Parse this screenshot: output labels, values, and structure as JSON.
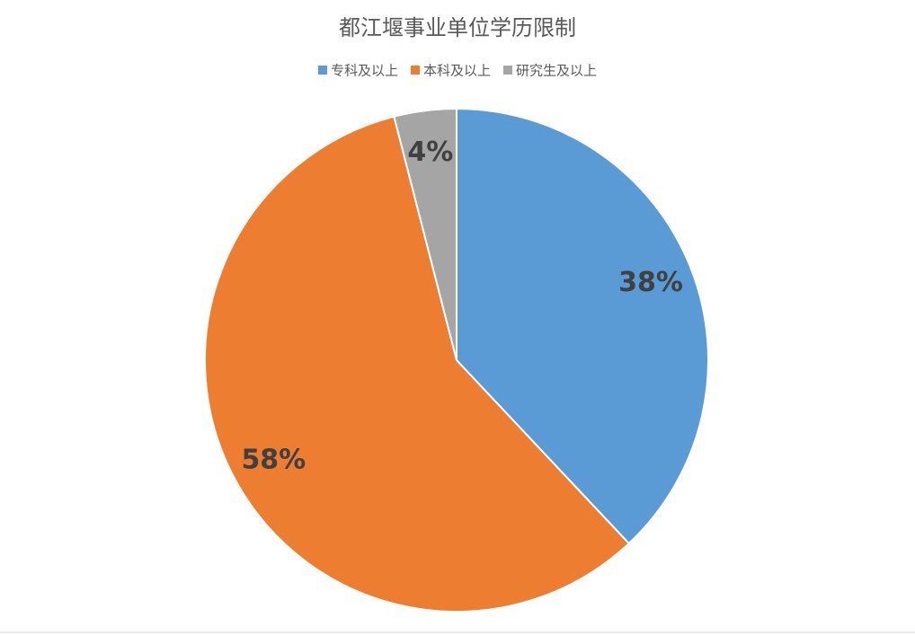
{
  "chart_data": {
    "type": "pie",
    "title": "都江堰事业单位学历限制",
    "categories": [
      "专科及以上",
      "本科及以上",
      "研究生及以上"
    ],
    "values": [
      38,
      58,
      4
    ],
    "value_labels": [
      "38%",
      "58%",
      "4%"
    ],
    "colors": [
      "#5b9bd5",
      "#ed7d31",
      "#a5a5a5"
    ],
    "legend": "top"
  }
}
